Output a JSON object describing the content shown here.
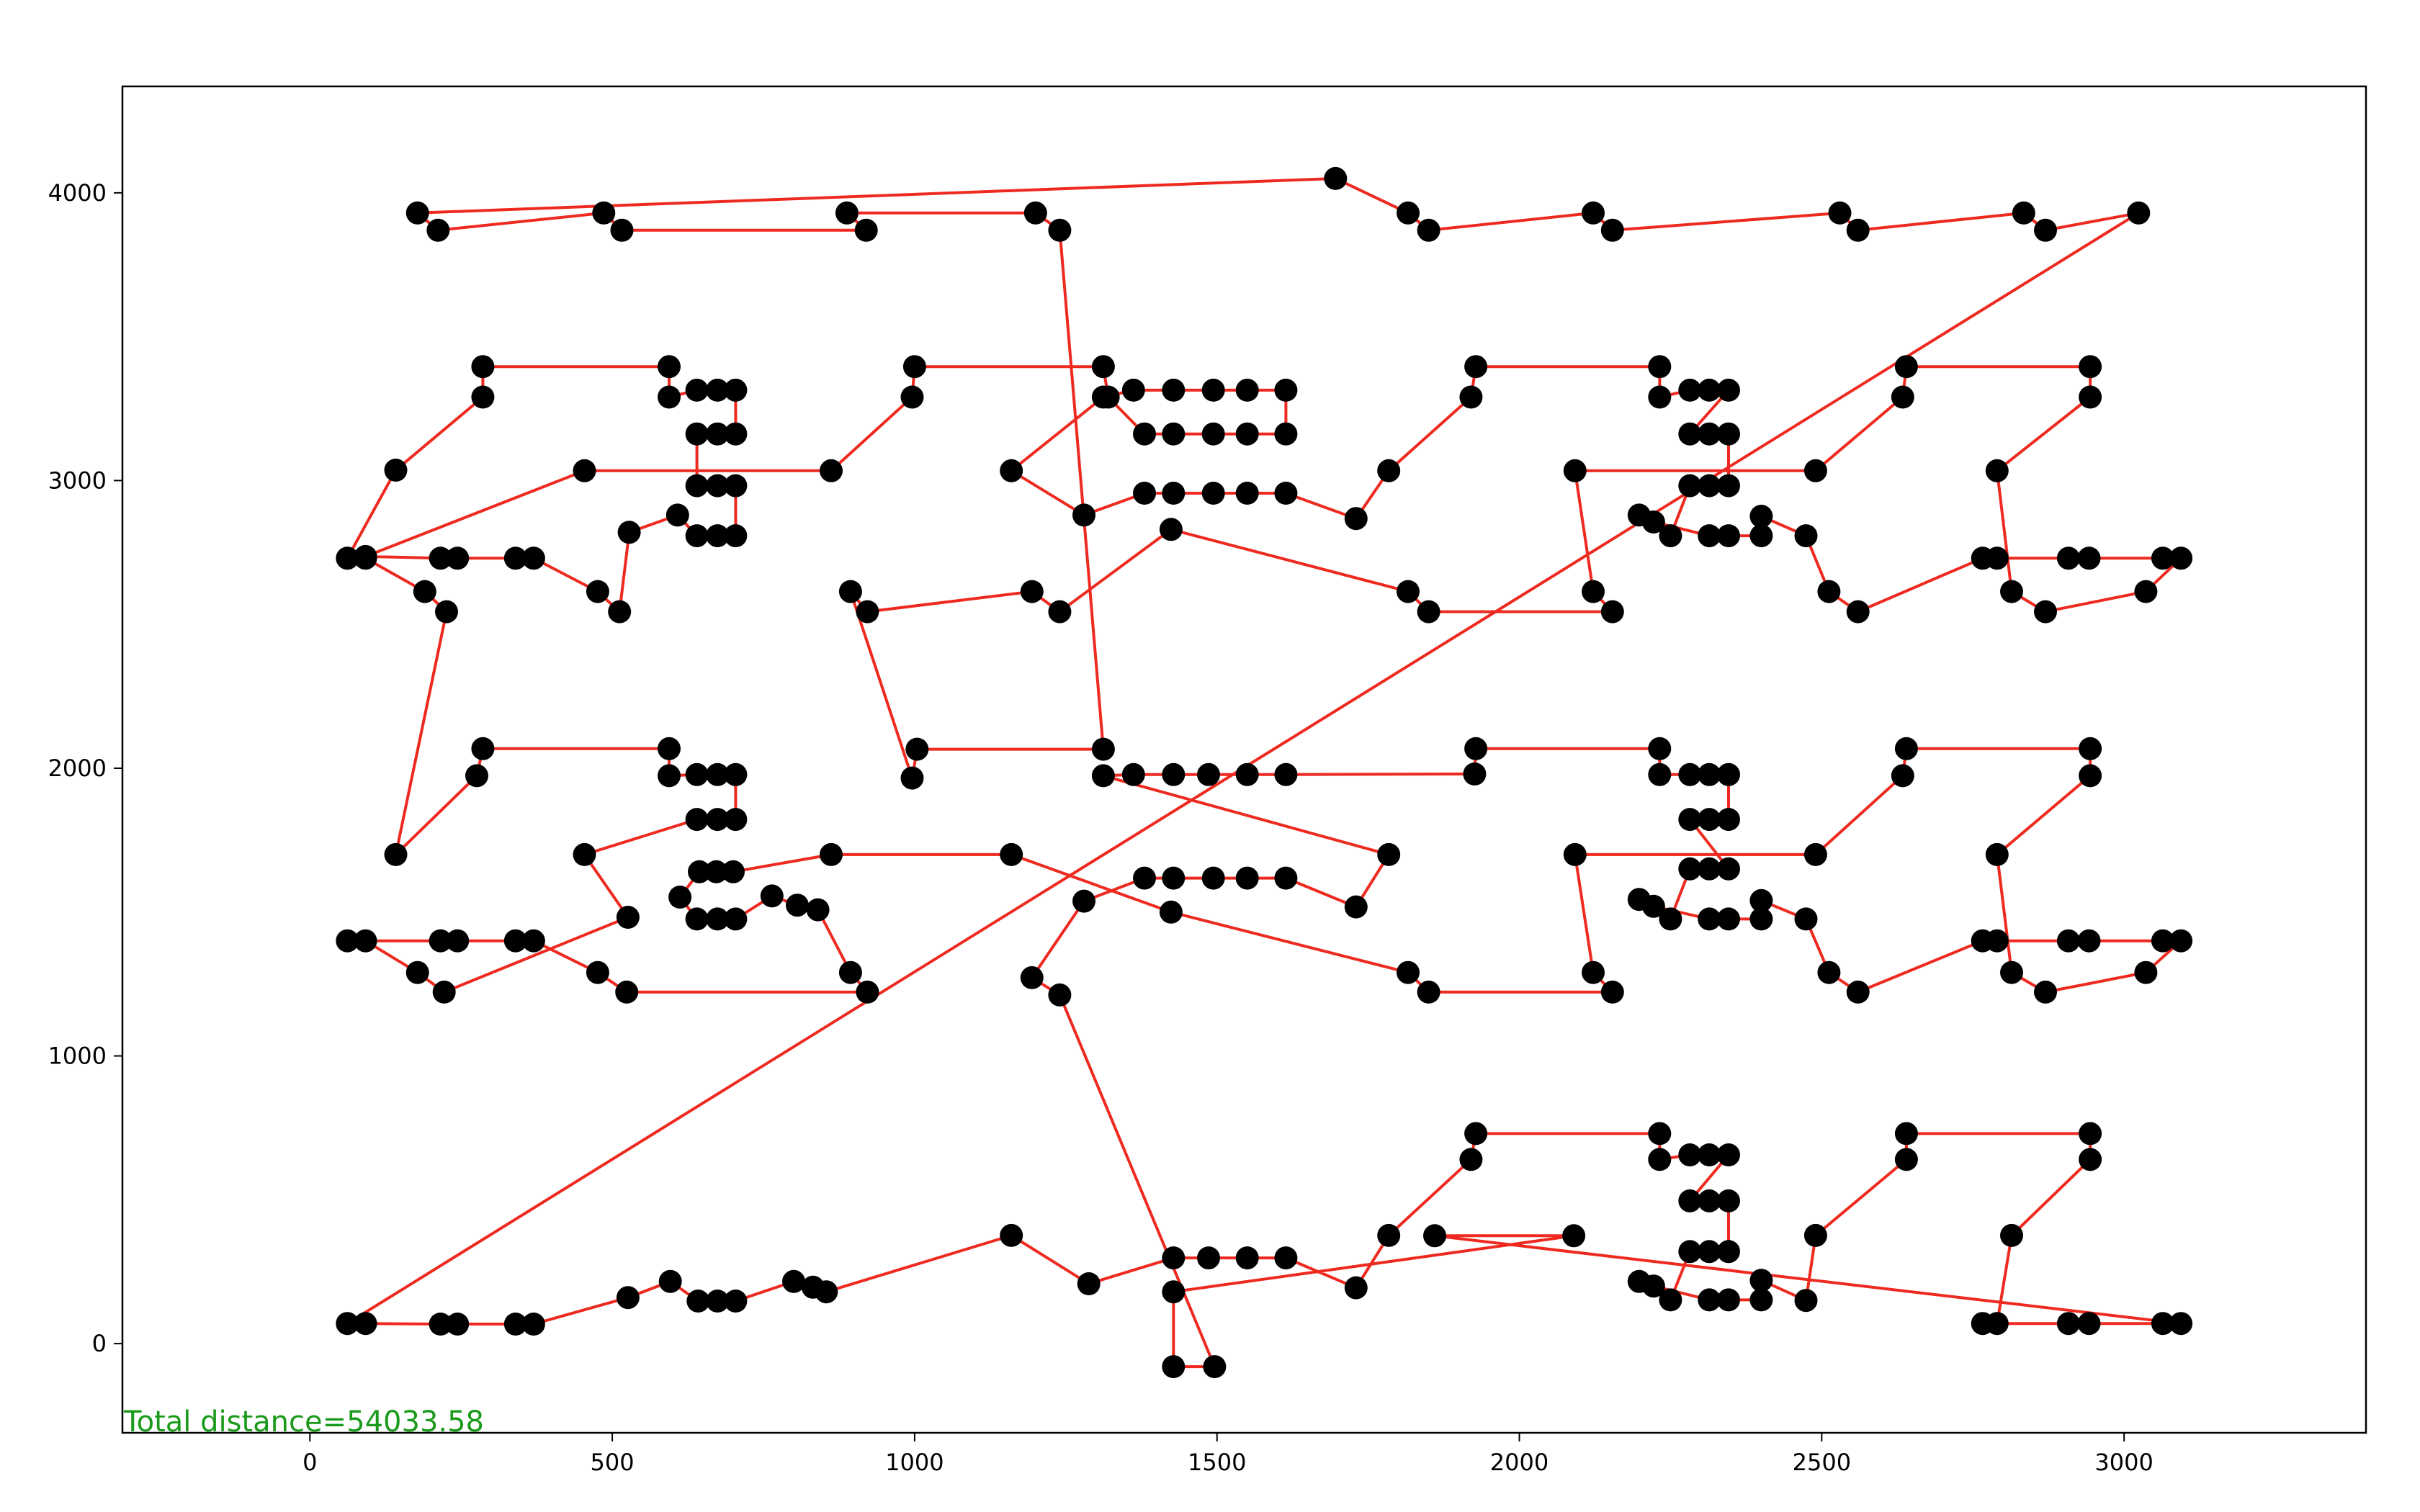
{
  "chart_data": {
    "type": "line",
    "title": "",
    "xlabel": "",
    "ylabel": "",
    "xlim": [
      -310,
      3400
    ],
    "ylim": [
      -310,
      4370
    ],
    "xticks": [
      0,
      500,
      1000,
      1500,
      2000,
      2500,
      3000
    ],
    "yticks": [
      0,
      1000,
      2000,
      3000,
      4000
    ],
    "grid": false,
    "legend": "none",
    "annotation": "Total distance=54033.58",
    "colors": {
      "route": "#ee2a20",
      "points": "#000000",
      "annotation": "#1a9a1a",
      "frame": "#000000"
    },
    "series": [
      {
        "values": [
          [
            62,
            70
          ],
          [
            92,
            70
          ],
          [
            216,
            68
          ],
          [
            244,
            68
          ],
          [
            340,
            68
          ],
          [
            370,
            68
          ],
          [
            526,
            160
          ],
          [
            596,
            216
          ],
          [
            642,
            148
          ],
          [
            674,
            148
          ],
          [
            704,
            148
          ],
          [
            800,
            216
          ],
          [
            832,
            196
          ],
          [
            854,
            180
          ],
          [
            1160,
            376
          ],
          [
            1288,
            208
          ],
          [
            1428,
            298
          ],
          [
            1486,
            298
          ],
          [
            1550,
            298
          ],
          [
            1614,
            298
          ],
          [
            1730,
            194
          ],
          [
            1784,
            376
          ],
          [
            1920,
            640
          ],
          [
            1928,
            730
          ],
          [
            2232,
            730
          ],
          [
            2232,
            640
          ],
          [
            2282,
            656
          ],
          [
            2314,
            656
          ],
          [
            2346,
            656
          ],
          [
            2282,
            496
          ],
          [
            2314,
            496
          ],
          [
            2346,
            496
          ],
          [
            2346,
            320
          ],
          [
            2314,
            320
          ],
          [
            2282,
            320
          ],
          [
            2250,
            152
          ],
          [
            2198,
            216
          ],
          [
            2222,
            200
          ],
          [
            2314,
            152
          ],
          [
            2346,
            152
          ],
          [
            2400,
            152
          ],
          [
            2400,
            220
          ],
          [
            2474,
            150
          ],
          [
            2490,
            376
          ],
          [
            2640,
            640
          ],
          [
            2640,
            730
          ],
          [
            2944,
            730
          ],
          [
            2944,
            640
          ],
          [
            2814,
            376
          ],
          [
            2790,
            70
          ],
          [
            2766,
            70
          ],
          [
            2908,
            70
          ],
          [
            2942,
            70
          ],
          [
            3064,
            70
          ],
          [
            3094,
            70
          ],
          [
            1860,
            375
          ],
          [
            2090,
            375
          ],
          [
            1428,
            180
          ],
          [
            1428,
            -80
          ],
          [
            1496,
            -80
          ],
          [
            1240,
            1212
          ],
          [
            1194,
            1272
          ],
          [
            1280,
            1538
          ],
          [
            1380,
            1618
          ],
          [
            1428,
            1618
          ],
          [
            1494,
            1618
          ],
          [
            1550,
            1618
          ],
          [
            1614,
            1618
          ],
          [
            1730,
            1518
          ],
          [
            1784,
            1700
          ],
          [
            1312,
            1974
          ],
          [
            1362,
            1978
          ],
          [
            1428,
            1978
          ],
          [
            1486,
            1978
          ],
          [
            1550,
            1978
          ],
          [
            1614,
            1978
          ],
          [
            1926,
            1980
          ],
          [
            1928,
            2068
          ],
          [
            2232,
            2068
          ],
          [
            2232,
            1978
          ],
          [
            2282,
            1978
          ],
          [
            2314,
            1978
          ],
          [
            2346,
            1978
          ],
          [
            2346,
            1822
          ],
          [
            2314,
            1822
          ],
          [
            2282,
            1822
          ],
          [
            2346,
            1650
          ],
          [
            2314,
            1650
          ],
          [
            2282,
            1650
          ],
          [
            2250,
            1476
          ],
          [
            2198,
            1544
          ],
          [
            2222,
            1520
          ],
          [
            2314,
            1476
          ],
          [
            2346,
            1476
          ],
          [
            2400,
            1476
          ],
          [
            2400,
            1540
          ],
          [
            2474,
            1476
          ],
          [
            2512,
            1290
          ],
          [
            2560,
            1222
          ],
          [
            2766,
            1400
          ],
          [
            2790,
            1400
          ],
          [
            2908,
            1400
          ],
          [
            2942,
            1400
          ],
          [
            3064,
            1400
          ],
          [
            3094,
            1400
          ],
          [
            3036,
            1290
          ],
          [
            2870,
            1222
          ],
          [
            2814,
            1290
          ],
          [
            2790,
            1700
          ],
          [
            2944,
            1974
          ],
          [
            2944,
            2068
          ],
          [
            2640,
            2068
          ],
          [
            2634,
            1974
          ],
          [
            2490,
            1700
          ],
          [
            2092,
            1700
          ],
          [
            2122,
            1290
          ],
          [
            2154,
            1222
          ],
          [
            1850,
            1222
          ],
          [
            1816,
            1290
          ],
          [
            1424,
            1500
          ],
          [
            1160,
            1700
          ],
          [
            862,
            1700
          ],
          [
            700,
            1640
          ],
          [
            672,
            1640
          ],
          [
            644,
            1640
          ],
          [
            612,
            1552
          ],
          [
            640,
            1476
          ],
          [
            674,
            1476
          ],
          [
            704,
            1476
          ],
          [
            764,
            1556
          ],
          [
            806,
            1524
          ],
          [
            840,
            1508
          ],
          [
            894,
            1290
          ],
          [
            922,
            1222
          ],
          [
            524,
            1222
          ],
          [
            476,
            1290
          ],
          [
            370,
            1400
          ],
          [
            340,
            1400
          ],
          [
            244,
            1400
          ],
          [
            216,
            1400
          ],
          [
            62,
            1400
          ],
          [
            92,
            1400
          ],
          [
            178,
            1290
          ],
          [
            222,
            1222
          ],
          [
            526,
            1482
          ],
          [
            454,
            1700
          ],
          [
            640,
            1822
          ],
          [
            674,
            1822
          ],
          [
            704,
            1822
          ],
          [
            704,
            1978
          ],
          [
            674,
            1978
          ],
          [
            640,
            1978
          ],
          [
            594,
            1974
          ],
          [
            594,
            2068
          ],
          [
            286,
            2068
          ],
          [
            276,
            1974
          ],
          [
            142,
            1700
          ],
          [
            226,
            2544
          ],
          [
            190,
            2614
          ],
          [
            92,
            2730
          ],
          [
            62,
            2730
          ],
          [
            142,
            3036
          ],
          [
            286,
            3290
          ],
          [
            286,
            3396
          ],
          [
            594,
            3396
          ],
          [
            594,
            3290
          ],
          [
            640,
            3314
          ],
          [
            674,
            3314
          ],
          [
            704,
            3314
          ],
          [
            704,
            3162
          ],
          [
            674,
            3162
          ],
          [
            640,
            3162
          ],
          [
            640,
            2982
          ],
          [
            674,
            2982
          ],
          [
            704,
            2982
          ],
          [
            704,
            2808
          ],
          [
            674,
            2808
          ],
          [
            640,
            2808
          ],
          [
            608,
            2880
          ],
          [
            528,
            2820
          ],
          [
            512,
            2544
          ],
          [
            476,
            2614
          ],
          [
            370,
            2730
          ],
          [
            340,
            2730
          ],
          [
            244,
            2730
          ],
          [
            216,
            2730
          ],
          [
            92,
            2736
          ],
          [
            454,
            3034
          ],
          [
            862,
            3034
          ],
          [
            996,
            3290
          ],
          [
            1000,
            3396
          ],
          [
            1312,
            3396
          ],
          [
            1320,
            3290
          ],
          [
            1380,
            3162
          ],
          [
            1428,
            3162
          ],
          [
            1494,
            3162
          ],
          [
            1550,
            3162
          ],
          [
            1614,
            3162
          ],
          [
            1614,
            3314
          ],
          [
            1550,
            3314
          ],
          [
            1494,
            3314
          ],
          [
            1428,
            3314
          ],
          [
            1362,
            3314
          ],
          [
            1312,
            3290
          ],
          [
            1160,
            3034
          ],
          [
            1280,
            2880
          ],
          [
            1380,
            2956
          ],
          [
            1428,
            2956
          ],
          [
            1494,
            2956
          ],
          [
            1550,
            2956
          ],
          [
            1614,
            2956
          ],
          [
            1730,
            2868
          ],
          [
            1784,
            3034
          ],
          [
            1920,
            3290
          ],
          [
            1928,
            3396
          ],
          [
            2232,
            3396
          ],
          [
            2232,
            3290
          ],
          [
            2282,
            3314
          ],
          [
            2314,
            3314
          ],
          [
            2346,
            3314
          ],
          [
            2282,
            3162
          ],
          [
            2314,
            3162
          ],
          [
            2346,
            3162
          ],
          [
            2346,
            2982
          ],
          [
            2314,
            2982
          ],
          [
            2282,
            2982
          ],
          [
            2250,
            2808
          ],
          [
            2198,
            2880
          ],
          [
            2222,
            2856
          ],
          [
            2314,
            2808
          ],
          [
            2346,
            2808
          ],
          [
            2400,
            2808
          ],
          [
            2400,
            2876
          ],
          [
            2474,
            2808
          ],
          [
            2512,
            2614
          ],
          [
            2560,
            2544
          ],
          [
            2766,
            2730
          ],
          [
            2790,
            2730
          ],
          [
            2908,
            2730
          ],
          [
            2942,
            2730
          ],
          [
            3064,
            2730
          ],
          [
            3094,
            2730
          ],
          [
            3036,
            2614
          ],
          [
            2870,
            2544
          ],
          [
            2814,
            2614
          ],
          [
            2790,
            3034
          ],
          [
            2944,
            3290
          ],
          [
            2944,
            3396
          ],
          [
            2640,
            3396
          ],
          [
            2634,
            3290
          ],
          [
            2490,
            3034
          ],
          [
            2092,
            3034
          ],
          [
            2122,
            2614
          ],
          [
            2154,
            2544
          ],
          [
            1850,
            2544
          ],
          [
            1816,
            2614
          ],
          [
            1424,
            2830
          ],
          [
            1240,
            2544
          ],
          [
            1194,
            2614
          ],
          [
            922,
            2544
          ],
          [
            894,
            2614
          ],
          [
            996,
            1966
          ],
          [
            1004,
            2066
          ],
          [
            1312,
            2066
          ],
          [
            1240,
            3870
          ],
          [
            1200,
            3930
          ],
          [
            888,
            3930
          ],
          [
            920,
            3870
          ],
          [
            516,
            3870
          ],
          [
            486,
            3930
          ],
          [
            212,
            3870
          ],
          [
            178,
            3930
          ],
          [
            1696,
            4050
          ],
          [
            1816,
            3930
          ],
          [
            1850,
            3870
          ],
          [
            2122,
            3930
          ],
          [
            2154,
            3870
          ],
          [
            2530,
            3930
          ],
          [
            2560,
            3870
          ],
          [
            2834,
            3930
          ],
          [
            2870,
            3870
          ],
          [
            3024,
            3930
          ],
          [
            62,
            70
          ]
        ]
      }
    ]
  }
}
